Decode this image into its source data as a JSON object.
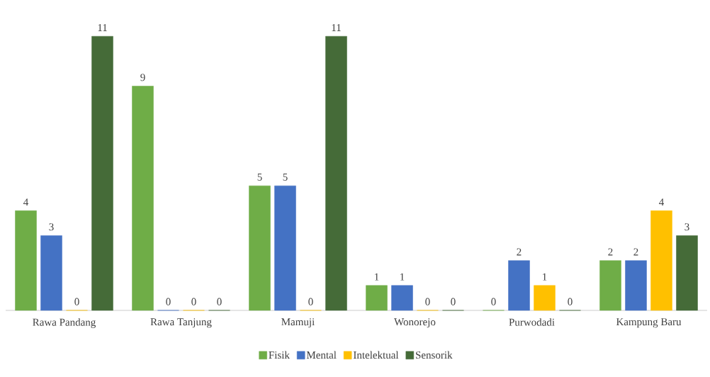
{
  "chart_data": {
    "type": "bar",
    "categories": [
      "Rawa Pandang",
      "Rawa Tanjung",
      "Mamuji",
      "Wonorejo",
      "Purwodadi",
      "Kampung Baru"
    ],
    "series": [
      {
        "name": "Fisik",
        "color": "#6fad47",
        "values": [
          4,
          9,
          5,
          1,
          0,
          2
        ]
      },
      {
        "name": "Mental",
        "color": "#4472c4",
        "values": [
          3,
          0,
          5,
          1,
          2,
          2
        ]
      },
      {
        "name": "Intelektual",
        "color": "#ffc000",
        "values": [
          0,
          0,
          0,
          0,
          1,
          4
        ]
      },
      {
        "name": "Sensorik",
        "color": "#456b38",
        "values": [
          11,
          0,
          11,
          0,
          0,
          3
        ]
      }
    ],
    "data_labels": true,
    "legend": "bottom"
  }
}
